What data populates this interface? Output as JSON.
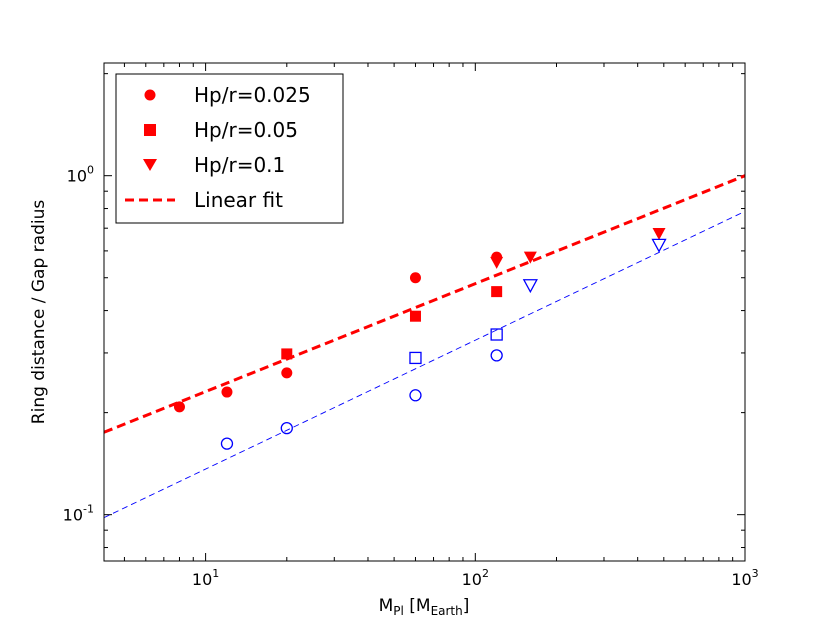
{
  "chart_data": {
    "type": "scatter",
    "xscale": "log",
    "yscale": "log",
    "xlim": [
      4.2,
      1000
    ],
    "ylim": [
      0.073,
      2.15
    ],
    "xlabel": {
      "main": "M",
      "sub1": "Pl",
      "mid": " [M",
      "sub2": "Earth",
      "end": "]"
    },
    "ylabel": "Ring distance / Gap radius",
    "x_ticks": [
      {
        "value": 10,
        "base": "10",
        "exp": "1"
      },
      {
        "value": 100,
        "base": "10",
        "exp": "2"
      },
      {
        "value": 1000,
        "base": "10",
        "exp": "3"
      }
    ],
    "y_ticks": [
      {
        "value": 0.1,
        "base": "10",
        "exp": "-1"
      },
      {
        "value": 1,
        "base": "10",
        "exp": "0"
      }
    ],
    "colors": {
      "filled": "#ff0000",
      "open": "#0000ff"
    },
    "series": [
      {
        "name": "Hp/r=0.025",
        "marker": "circle",
        "filled": true,
        "points": [
          [
            8,
            0.208
          ],
          [
            12,
            0.23
          ],
          [
            20,
            0.262
          ],
          [
            60,
            0.5
          ],
          [
            120,
            0.575
          ]
        ]
      },
      {
        "name": "Hp/r=0.05",
        "marker": "square",
        "filled": true,
        "points": [
          [
            20,
            0.298
          ],
          [
            60,
            0.385
          ],
          [
            120,
            0.455
          ]
        ]
      },
      {
        "name": "Hp/r=0.1",
        "marker": "triangle-down",
        "filled": true,
        "points": [
          [
            120,
            0.555
          ],
          [
            160,
            0.575
          ],
          [
            480,
            0.675
          ]
        ]
      },
      {
        "name": "",
        "marker": "circle",
        "filled": false,
        "points": [
          [
            12,
            0.162
          ],
          [
            20,
            0.18
          ],
          [
            60,
            0.225
          ],
          [
            120,
            0.295
          ]
        ]
      },
      {
        "name": "",
        "marker": "square",
        "filled": false,
        "points": [
          [
            60,
            0.29
          ],
          [
            120,
            0.34
          ]
        ]
      },
      {
        "name": "",
        "marker": "triangle-down",
        "filled": false,
        "points": [
          [
            160,
            0.475
          ],
          [
            480,
            0.625
          ]
        ]
      }
    ],
    "fits": [
      {
        "name": "Linear fit",
        "color": "#ff0000",
        "style": "dashed-thick",
        "from": [
          4.2,
          0.175
        ],
        "to": [
          1000,
          1.0
        ]
      },
      {
        "name": "",
        "color": "#0000ff",
        "style": "dashed-thin",
        "from": [
          4.2,
          0.098
        ],
        "to": [
          1000,
          0.785
        ]
      }
    ],
    "legend": {
      "position": "top-left",
      "entries": [
        "Hp/r=0.025",
        "Hp/r=0.05",
        "Hp/r=0.1",
        "Linear fit"
      ]
    }
  }
}
